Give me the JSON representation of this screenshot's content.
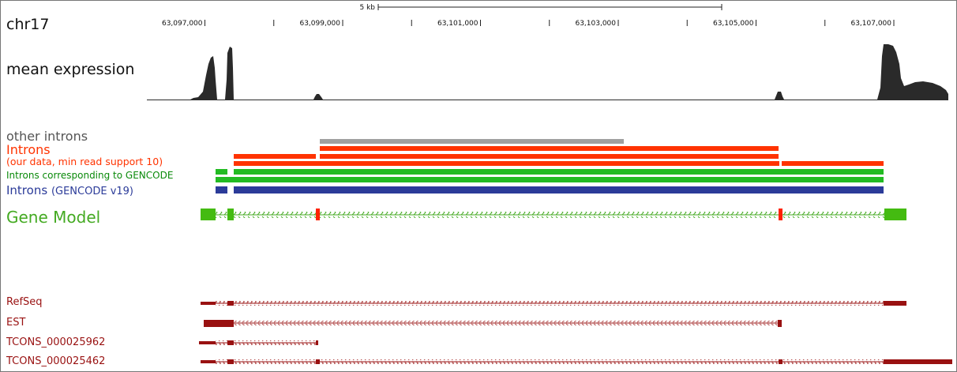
{
  "labels": {
    "chromosome": "chr17",
    "mean_expression": "mean expression",
    "other_introns": "other introns",
    "introns_title": "Introns",
    "introns_subtitle": "(our data, min read support 10)",
    "introns_gencode_corresponding": "Introns corresponding to GENCODE",
    "introns_gencode_main": "Introns",
    "introns_gencode_version": "(GENCODE v19)",
    "gene_model": "Gene Model"
  },
  "scale_bar": {
    "label": "5 kb"
  },
  "axis": {
    "ticks": [
      {
        "pos": 63097000,
        "label": "63,097,000"
      },
      {
        "pos": 63099000,
        "label": "63,099,000"
      },
      {
        "pos": 63101000,
        "label": "63,101,000"
      },
      {
        "pos": 63103000,
        "label": "63,103,000"
      },
      {
        "pos": 63105000,
        "label": "63,105,000"
      },
      {
        "pos": 63107000,
        "label": "63,107,000"
      }
    ],
    "minor_ticks": [
      63098000,
      63100000,
      63102000,
      63104000,
      63106000
    ]
  },
  "tracks": [
    {
      "name": "RefSeq"
    },
    {
      "name": "EST"
    },
    {
      "name": "TCONS_000025962"
    },
    {
      "name": "TCONS_000025462"
    }
  ],
  "colors": {
    "other_introns": "#a0a0a0",
    "introns_ours": "#ff3300",
    "introns_gencode": "#22bb22",
    "introns_v19": "#2b3b99",
    "gene_model": "#44bb11",
    "gene_model_highlight": "#ff2200",
    "tracks": "#991111",
    "expression": "#2a2a2a"
  }
}
